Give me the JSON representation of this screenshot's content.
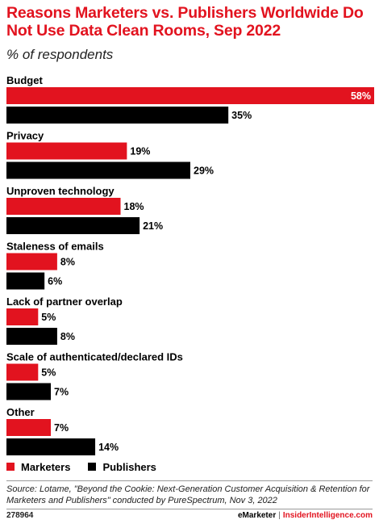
{
  "chart_data": {
    "type": "bar",
    "orientation": "horizontal",
    "title": "Reasons Marketers vs. Publishers Worldwide Do Not Use Data Clean Rooms, Sep 2022",
    "subtitle": "% of respondents",
    "categories": [
      "Budget",
      "Privacy",
      "Unproven technology",
      "Staleness of emails",
      "Lack of partner overlap",
      "Scale of authenticated/declared IDs",
      "Other"
    ],
    "series": [
      {
        "name": "Marketers",
        "color": "#e2131f",
        "values": [
          58,
          19,
          18,
          8,
          5,
          5,
          7
        ]
      },
      {
        "name": "Publishers",
        "color": "#000000",
        "values": [
          35,
          29,
          21,
          6,
          8,
          7,
          14
        ]
      }
    ],
    "value_suffix": "%",
    "xlim": [
      0,
      58
    ],
    "grid": false,
    "legend": "bottom-left"
  },
  "source": "Source: Lotame, \"Beyond the Cookie: Next-Generation Customer Acquisition & Retention for Marketers and Publishers\" conducted by PureSpectrum, Nov 3, 2022",
  "footer": {
    "chart_id": "278964",
    "brand_left": "eMarketer",
    "separator": "|",
    "brand_right": "InsiderIntelligence.com"
  }
}
